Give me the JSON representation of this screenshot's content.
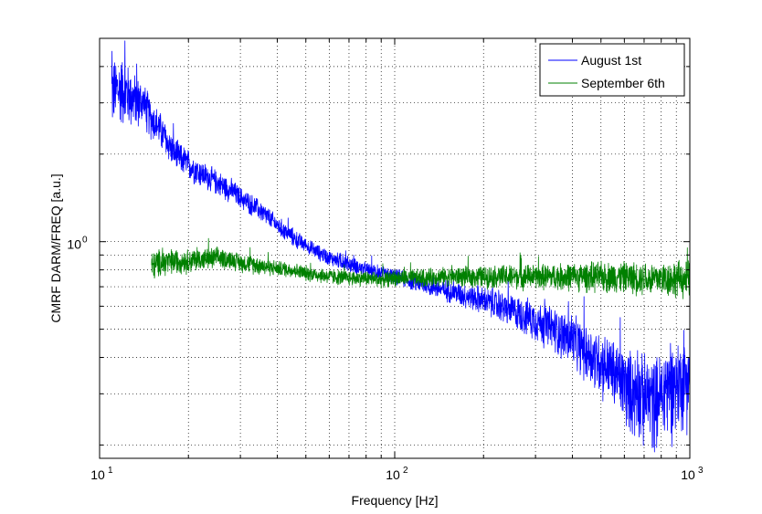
{
  "chart_data": {
    "type": "line",
    "xlabel": "Frequency [Hz]",
    "ylabel": "CMRF DARM/FREQ [a.u.]",
    "xscale": "log",
    "yscale": "log",
    "xlim": [
      10,
      1000
    ],
    "ylim": [
      0.18,
      5.0
    ],
    "grid": true,
    "legend_position": "top-right",
    "x_ticks": [
      {
        "base": "10",
        "exp": "1",
        "value": 10
      },
      {
        "base": "10",
        "exp": "2",
        "value": 100
      },
      {
        "base": "10",
        "exp": "3",
        "value": 1000
      }
    ],
    "y_ticks": [
      {
        "base": "10",
        "exp": "0",
        "value": 1
      }
    ],
    "series": [
      {
        "name": "August 1st",
        "color": "#0000ff",
        "x": [
          11,
          12,
          13,
          14,
          15,
          16,
          17,
          18,
          20,
          22,
          25,
          28,
          30,
          35,
          40,
          45,
          50,
          55,
          60,
          70,
          80,
          90,
          100,
          120,
          150,
          200,
          250,
          300,
          350,
          400,
          450,
          500,
          550,
          600,
          650,
          700,
          750,
          800,
          850,
          900,
          950,
          1000
        ],
        "y": [
          3.3,
          3.4,
          3.1,
          3.0,
          2.65,
          2.45,
          2.2,
          2.0,
          1.85,
          1.72,
          1.6,
          1.5,
          1.42,
          1.28,
          1.14,
          1.04,
          0.97,
          0.92,
          0.88,
          0.84,
          0.8,
          0.78,
          0.76,
          0.72,
          0.68,
          0.63,
          0.58,
          0.54,
          0.5,
          0.46,
          0.42,
          0.39,
          0.36,
          0.33,
          0.31,
          0.3,
          0.29,
          0.3,
          0.32,
          0.33,
          0.34,
          0.35
        ],
        "noise": [
          0.22,
          0.22,
          0.18,
          0.16,
          0.13,
          0.12,
          0.11,
          0.1,
          0.1,
          0.09,
          0.08,
          0.08,
          0.07,
          0.07,
          0.06,
          0.06,
          0.05,
          0.05,
          0.05,
          0.05,
          0.05,
          0.05,
          0.05,
          0.06,
          0.07,
          0.09,
          0.11,
          0.13,
          0.15,
          0.17,
          0.19,
          0.21,
          0.23,
          0.25,
          0.27,
          0.29,
          0.3,
          0.31,
          0.3,
          0.29,
          0.28,
          0.28
        ]
      },
      {
        "name": "September 6th",
        "color": "#008000",
        "x": [
          15,
          16,
          17,
          18,
          20,
          22,
          25,
          28,
          30,
          35,
          40,
          45,
          50,
          55,
          60,
          70,
          80,
          90,
          100,
          120,
          150,
          200,
          250,
          300,
          400,
          500,
          600,
          700,
          800,
          900,
          1000
        ],
        "y": [
          0.82,
          0.85,
          0.85,
          0.86,
          0.86,
          0.87,
          0.88,
          0.87,
          0.85,
          0.83,
          0.81,
          0.8,
          0.78,
          0.77,
          0.76,
          0.75,
          0.75,
          0.74,
          0.75,
          0.75,
          0.76,
          0.76,
          0.76,
          0.76,
          0.76,
          0.76,
          0.76,
          0.75,
          0.75,
          0.75,
          0.75
        ],
        "noise": [
          0.1,
          0.09,
          0.09,
          0.08,
          0.08,
          0.07,
          0.07,
          0.06,
          0.06,
          0.06,
          0.05,
          0.05,
          0.05,
          0.05,
          0.05,
          0.05,
          0.05,
          0.05,
          0.05,
          0.06,
          0.06,
          0.07,
          0.08,
          0.08,
          0.09,
          0.1,
          0.1,
          0.11,
          0.11,
          0.12,
          0.12
        ]
      }
    ]
  }
}
